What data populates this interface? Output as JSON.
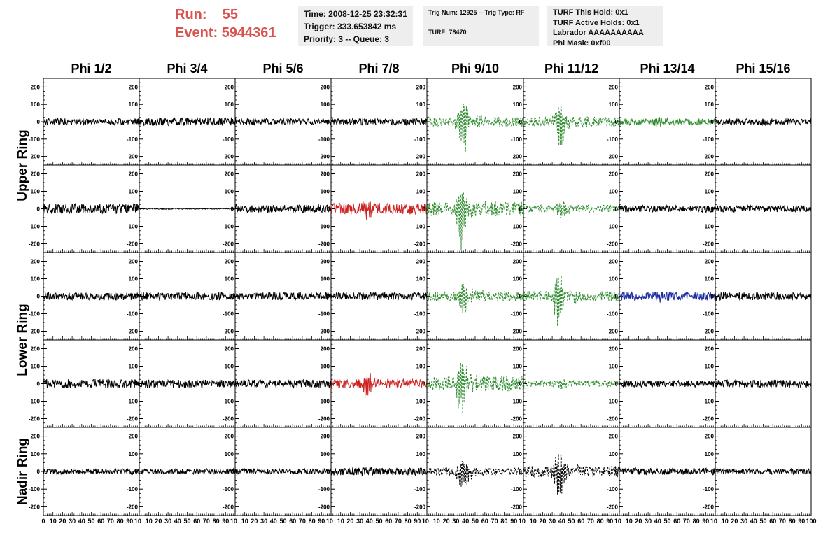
{
  "header": {
    "run_label": "Run:",
    "run_value": "55",
    "event_label": "Event:",
    "event_value": "5944361",
    "time_line": "Time: 2008-12-25 23:32:31",
    "trigger_line": "Trigger: 333.653842 ms",
    "priority_line": "Priority: 3 -- Queue: 3",
    "trig_line": "Trig Num: 12925 -- Trig Type: RF",
    "turf_line": "TURF: 78470",
    "turf_hold_line": "TURF This Hold: 0x1",
    "turf_active_line": "TURF Active Holds: 0x1",
    "labrador_line": "Labrador AAAAAAAAAA",
    "phi_mask_line": "Phi Mask: 0xf00"
  },
  "chart_data": {
    "type": "line",
    "columns": [
      "Phi 1/2",
      "Phi 3/4",
      "Phi 5/6",
      "Phi 7/8",
      "Phi 9/10",
      "Phi 11/12",
      "Phi 13/14",
      "Phi 15/16"
    ],
    "rows": [
      "Upper Ring",
      "Upper Ring",
      "Lower Ring",
      "Lower Ring",
      "Nadir Ring"
    ],
    "row_labels": [
      {
        "text": "Upper Ring",
        "span": [
          0,
          1
        ]
      },
      {
        "text": "Lower Ring",
        "span": [
          2,
          3
        ]
      },
      {
        "text": "Nadir Ring",
        "span": [
          4,
          4
        ]
      }
    ],
    "x_range": [
      0,
      100
    ],
    "y_range": [
      -250,
      250
    ],
    "y_ticks": [
      -200,
      -100,
      0,
      100,
      200
    ],
    "x_tick_labels": [
      0,
      10,
      20,
      30,
      40,
      50,
      60,
      70,
      80,
      90,
      100
    ],
    "colors": {
      "black": "#000000",
      "green": "#2e8b2e",
      "red": "#cc2222",
      "blue": "#1f2f9f"
    },
    "panels": [
      [
        {
          "color": "black",
          "dashed": false,
          "noise": 12,
          "burst": 0,
          "center": 40
        },
        {
          "color": "black",
          "dashed": false,
          "noise": 14,
          "burst": 0,
          "center": 40
        },
        {
          "color": "black",
          "dashed": false,
          "noise": 12,
          "burst": 0,
          "center": 40
        },
        {
          "color": "black",
          "dashed": false,
          "noise": 12,
          "burst": 0,
          "center": 40
        },
        {
          "color": "green",
          "dashed": true,
          "noise": 18,
          "burst": 170,
          "center": 38
        },
        {
          "color": "green",
          "dashed": true,
          "noise": 18,
          "burst": 150,
          "center": 38
        },
        {
          "color": "green",
          "dashed": false,
          "noise": 12,
          "burst": 40,
          "center": 40
        },
        {
          "color": "black",
          "dashed": false,
          "noise": 12,
          "burst": 0,
          "center": 40
        }
      ],
      [
        {
          "color": "black",
          "dashed": false,
          "noise": 18,
          "burst": 0,
          "center": 40
        },
        {
          "color": "black",
          "dashed": false,
          "noise": 2,
          "burst": 0,
          "center": 40
        },
        {
          "color": "black",
          "dashed": false,
          "noise": 14,
          "burst": 0,
          "center": 40
        },
        {
          "color": "red",
          "dashed": false,
          "noise": 20,
          "burst": 50,
          "center": 38
        },
        {
          "color": "green",
          "dashed": true,
          "noise": 25,
          "burst": 200,
          "center": 36
        },
        {
          "color": "green",
          "dashed": true,
          "noise": 14,
          "burst": 55,
          "center": 40
        },
        {
          "color": "black",
          "dashed": false,
          "noise": 12,
          "burst": 0,
          "center": 40
        },
        {
          "color": "black",
          "dashed": false,
          "noise": 12,
          "burst": 0,
          "center": 40
        }
      ],
      [
        {
          "color": "black",
          "dashed": false,
          "noise": 14,
          "burst": 0,
          "center": 40
        },
        {
          "color": "black",
          "dashed": false,
          "noise": 14,
          "burst": 0,
          "center": 40
        },
        {
          "color": "black",
          "dashed": false,
          "noise": 14,
          "burst": 0,
          "center": 40
        },
        {
          "color": "black",
          "dashed": false,
          "noise": 14,
          "burst": 0,
          "center": 40
        },
        {
          "color": "green",
          "dashed": true,
          "noise": 18,
          "burst": 110,
          "center": 38
        },
        {
          "color": "green",
          "dashed": true,
          "noise": 18,
          "burst": 180,
          "center": 37
        },
        {
          "color": "blue",
          "dashed": false,
          "noise": 16,
          "burst": 20,
          "center": 40
        },
        {
          "color": "black",
          "dashed": false,
          "noise": 14,
          "burst": 0,
          "center": 40
        }
      ],
      [
        {
          "color": "black",
          "dashed": false,
          "noise": 16,
          "burst": 0,
          "center": 40
        },
        {
          "color": "black",
          "dashed": false,
          "noise": 14,
          "burst": 0,
          "center": 40
        },
        {
          "color": "black",
          "dashed": false,
          "noise": 14,
          "burst": 0,
          "center": 40
        },
        {
          "color": "red",
          "dashed": false,
          "noise": 16,
          "burst": 70,
          "center": 38
        },
        {
          "color": "green",
          "dashed": true,
          "noise": 28,
          "burst": 190,
          "center": 36
        },
        {
          "color": "green",
          "dashed": true,
          "noise": 12,
          "burst": 30,
          "center": 40
        },
        {
          "color": "black",
          "dashed": false,
          "noise": 12,
          "burst": 0,
          "center": 40
        },
        {
          "color": "black",
          "dashed": false,
          "noise": 14,
          "burst": 0,
          "center": 40
        }
      ],
      [
        {
          "color": "black",
          "dashed": false,
          "noise": 10,
          "burst": 0,
          "center": 40
        },
        {
          "color": "black",
          "dashed": false,
          "noise": 10,
          "burst": 0,
          "center": 40
        },
        {
          "color": "black",
          "dashed": false,
          "noise": 10,
          "burst": 0,
          "center": 40
        },
        {
          "color": "black",
          "dashed": false,
          "noise": 14,
          "burst": 20,
          "center": 40
        },
        {
          "color": "black",
          "dashed": true,
          "noise": 14,
          "burst": 130,
          "center": 38
        },
        {
          "color": "black",
          "dashed": true,
          "noise": 20,
          "burst": 170,
          "center": 37
        },
        {
          "color": "black",
          "dashed": false,
          "noise": 12,
          "burst": 0,
          "center": 40
        },
        {
          "color": "black",
          "dashed": false,
          "noise": 10,
          "burst": 0,
          "center": 40
        }
      ]
    ]
  }
}
